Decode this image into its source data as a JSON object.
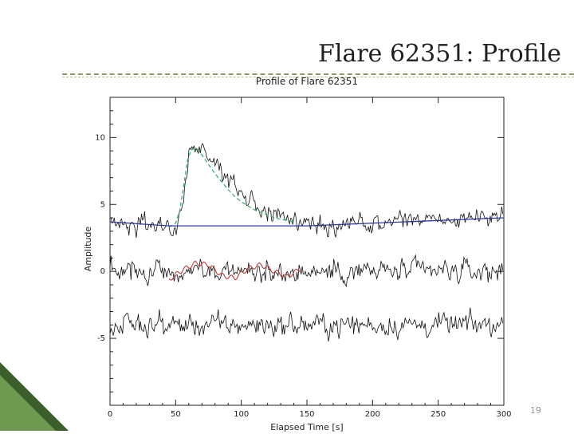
{
  "slide": {
    "title": "Flare 62351: Profile",
    "page_number": "19"
  },
  "colors": {
    "data": "#111111",
    "profile_fit": "#3cb371",
    "background_fit": "#2b3a9a",
    "oscillation_fit": "#c03a3a",
    "accent_dark": "#3c5e2c",
    "accent_light": "#6d9a50"
  },
  "chart_data": {
    "type": "line",
    "title": "Profile of Flare 62351",
    "xlabel": "Elapsed Time [s]",
    "ylabel": "Amplitude",
    "xlim": [
      0,
      300
    ],
    "ylim": [
      -10,
      13
    ],
    "xticks": [
      0,
      50,
      100,
      150,
      200,
      250,
      300
    ],
    "yticks": [
      -5,
      0,
      5,
      10
    ],
    "grid": false,
    "legend": "none",
    "curves": [
      {
        "role": "flare-data",
        "style": "noisy",
        "x": [
          0,
          45,
          48,
          52,
          56,
          58,
          60,
          62,
          64,
          66,
          70,
          75,
          80,
          85,
          90,
          95,
          100,
          105,
          110,
          115,
          120,
          125,
          130,
          135,
          140,
          145,
          150,
          160,
          170,
          180,
          190,
          200,
          210,
          220,
          230,
          240,
          250,
          260,
          270,
          280,
          290,
          300
        ],
        "y": [
          3.6,
          3.2,
          2.6,
          3.4,
          5.2,
          7.0,
          8.6,
          9.5,
          9.3,
          8.9,
          9.2,
          8.8,
          8.1,
          7.5,
          7.0,
          6.4,
          5.9,
          5.5,
          5.1,
          4.8,
          4.5,
          4.2,
          4.0,
          3.8,
          3.7,
          3.6,
          3.5,
          3.4,
          3.5,
          3.6,
          3.6,
          3.7,
          3.7,
          3.8,
          3.8,
          3.9,
          3.9,
          3.9,
          3.9,
          4.0,
          4.0,
          4.0
        ],
        "noise": 0.45
      },
      {
        "role": "profile-fit",
        "style": "dashed",
        "x": [
          45,
          50,
          53,
          56,
          59,
          62,
          66,
          70,
          75,
          80,
          85,
          90,
          95,
          100,
          105,
          110,
          115,
          120,
          125,
          130,
          135,
          140
        ],
        "y": [
          3.3,
          3.6,
          4.5,
          6.3,
          8.3,
          9.1,
          9.2,
          8.7,
          8.0,
          7.3,
          6.7,
          6.1,
          5.6,
          5.2,
          4.9,
          4.6,
          4.4,
          4.2,
          4.0,
          3.9,
          3.8,
          3.7
        ]
      },
      {
        "role": "background-fit",
        "style": "solid",
        "x": [
          0,
          45,
          150,
          300
        ],
        "y": [
          3.7,
          3.4,
          3.4,
          4.0
        ]
      },
      {
        "role": "residual-data",
        "style": "noisy",
        "x": [
          0,
          300
        ],
        "y": [
          0,
          0
        ],
        "noise": 0.55
      },
      {
        "role": "oscillation-fit",
        "style": "wavy",
        "x": [
          45,
          55,
          65,
          75,
          85,
          95,
          105,
          115,
          125,
          135,
          145
        ],
        "y": [
          -0.6,
          0.1,
          0.6,
          0.5,
          -0.3,
          -0.5,
          0.2,
          0.5,
          0.0,
          -0.4,
          0.2
        ]
      },
      {
        "role": "filtered-data",
        "style": "noisy",
        "x": [
          0,
          300
        ],
        "y": [
          -4.0,
          -4.0
        ],
        "noise": 0.55
      }
    ]
  }
}
